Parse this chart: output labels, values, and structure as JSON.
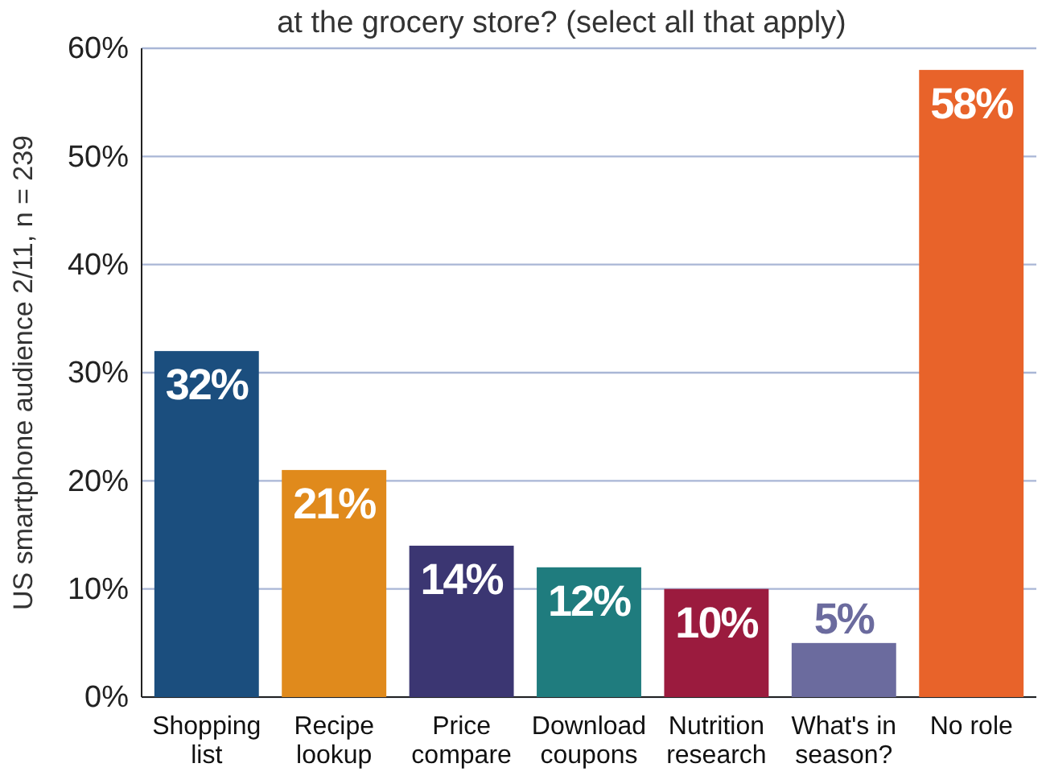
{
  "chart_data": {
    "type": "bar",
    "title": "at the grocery store? (select all that apply)",
    "ylabel": "US smartphone audience 2/11, n = 239",
    "categories": [
      "Shopping list",
      "Recipe lookup",
      "Price compare",
      "Download coupons",
      "Nutrition research",
      "What's in season?",
      "No role"
    ],
    "values": [
      32,
      21,
      14,
      12,
      10,
      5,
      58
    ],
    "value_labels": [
      "32%",
      "21%",
      "14%",
      "12%",
      "10%",
      "5%",
      "58%"
    ],
    "colors": [
      "#1b4e7e",
      "#e08a1c",
      "#3b3672",
      "#1f7c7e",
      "#9b1b3e",
      "#6b6b9e",
      "#e8632a"
    ],
    "ylim": [
      0,
      60
    ],
    "yticks": [
      {
        "value": 0,
        "label": "0%"
      },
      {
        "value": 10,
        "label": "10%"
      },
      {
        "value": 20,
        "label": "20%"
      },
      {
        "value": 30,
        "label": "30%"
      },
      {
        "value": 40,
        "label": "40%"
      },
      {
        "value": 50,
        "label": "50%"
      },
      {
        "value": 60,
        "label": "60%"
      }
    ],
    "grid": "y"
  }
}
